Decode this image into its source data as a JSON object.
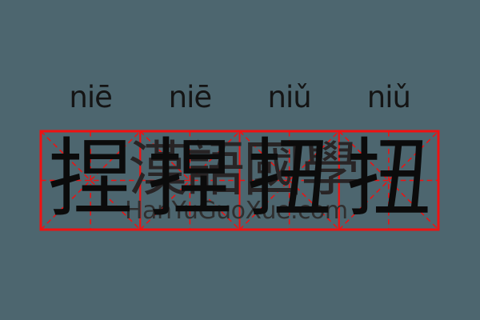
{
  "page": {
    "background_color": "#4d666f",
    "description": "tianzige-practice-card"
  },
  "word": {
    "syllables": [
      {
        "pinyin": "niē",
        "hanzi": "捏"
      },
      {
        "pinyin": "niē",
        "hanzi": "捏"
      },
      {
        "pinyin": "niǔ",
        "hanzi": "扭"
      },
      {
        "pinyin": "niǔ",
        "hanzi": "扭"
      }
    ]
  },
  "watermark": {
    "cjk": "漢語國學",
    "site": "HanYuGuoXue.com"
  },
  "colors": {
    "background": "#4d666f",
    "grid_red": "#ef1111",
    "ink": "#0b0b0b",
    "pinyin_ink": "#141414",
    "watermark_cjk": "#282425",
    "watermark_site": "#2f2f2f"
  }
}
